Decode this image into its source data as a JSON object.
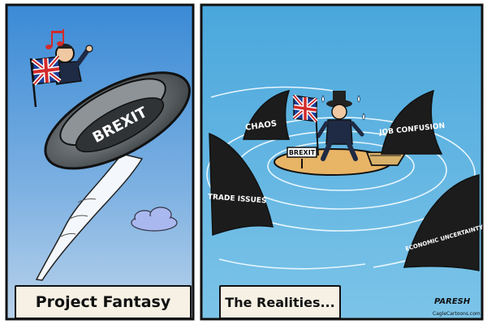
{
  "panels": {
    "left": {
      "saucer_label": "BREXIT",
      "caption": "Project Fantasy"
    },
    "right": {
      "sign_label": "BREXIT",
      "fins": [
        {
          "label": "CHAOS"
        },
        {
          "label": "JOB CONFUSION"
        },
        {
          "label": "TRADE ISSUES"
        },
        {
          "label": "ECONOMIC UNCERTAINTY"
        }
      ],
      "caption": "The Realities..."
    }
  },
  "signature": {
    "artist": "PARESH",
    "site": "CagleCartoons.com"
  },
  "colors": {
    "sky_top": "#3e8fd8",
    "sky_bottom": "#9cc2e6",
    "sea": "#5fb3df",
    "saucer": "#6f7478",
    "fin": "#1c1c1c",
    "island": "#e8b466",
    "flag_red": "#d22b2b",
    "flag_blue": "#1d3f9a"
  },
  "icons": [
    "music-note-icon",
    "union-jack-flag-icon",
    "shark-fin-icon",
    "boat-icon",
    "cloud-icon",
    "sweat-drop-icon"
  ]
}
